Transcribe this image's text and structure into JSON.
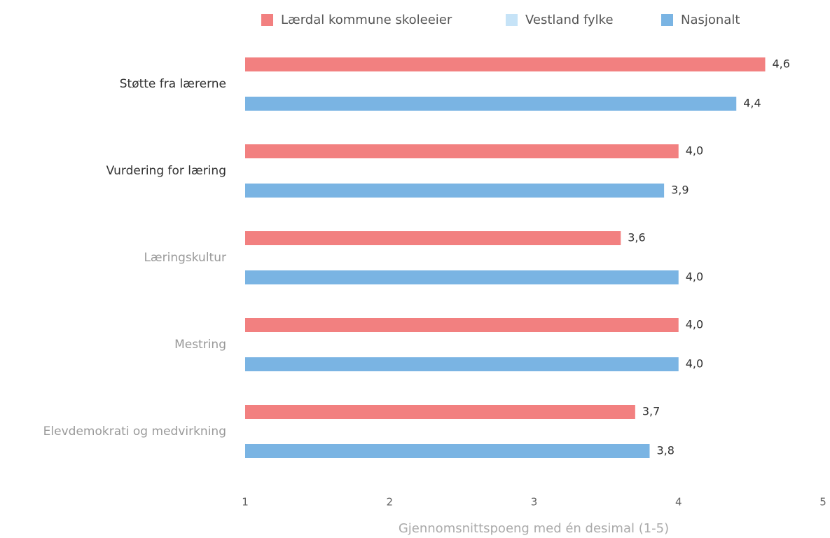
{
  "chart_data": {
    "type": "bar",
    "orientation": "horizontal",
    "categories": [
      "Støtte fra lærerne",
      "Vurdering for læring",
      "Læringskultur",
      "Mestring",
      "Elevdemokrati og medvirkning"
    ],
    "category_colors": [
      "#333333",
      "#333333",
      "#999999",
      "#999999",
      "#999999"
    ],
    "series": [
      {
        "name": "Lærdal kommune skoleeier",
        "color": "#f28080",
        "values": [
          4.6,
          4.0,
          3.6,
          4.0,
          3.7
        ],
        "value_labels": [
          "4,6",
          "4,0",
          "3,6",
          "4,0",
          "3,7"
        ]
      },
      {
        "name": "Vestland fylke",
        "color": "#c6e3f7",
        "values": [
          null,
          null,
          null,
          null,
          null
        ]
      },
      {
        "name": "Nasjonalt",
        "color": "#7ab4e3",
        "values": [
          4.4,
          3.9,
          4.0,
          4.0,
          3.8
        ],
        "value_labels": [
          "4,4",
          "3,9",
          "4,0",
          "4,0",
          "3,8"
        ]
      }
    ],
    "xlabel": "Gjennomsnittspoeng med én desimal (1-5)",
    "xlim": [
      1,
      5
    ],
    "xticks": [
      1,
      2,
      3,
      4,
      5
    ],
    "legend": "top"
  }
}
